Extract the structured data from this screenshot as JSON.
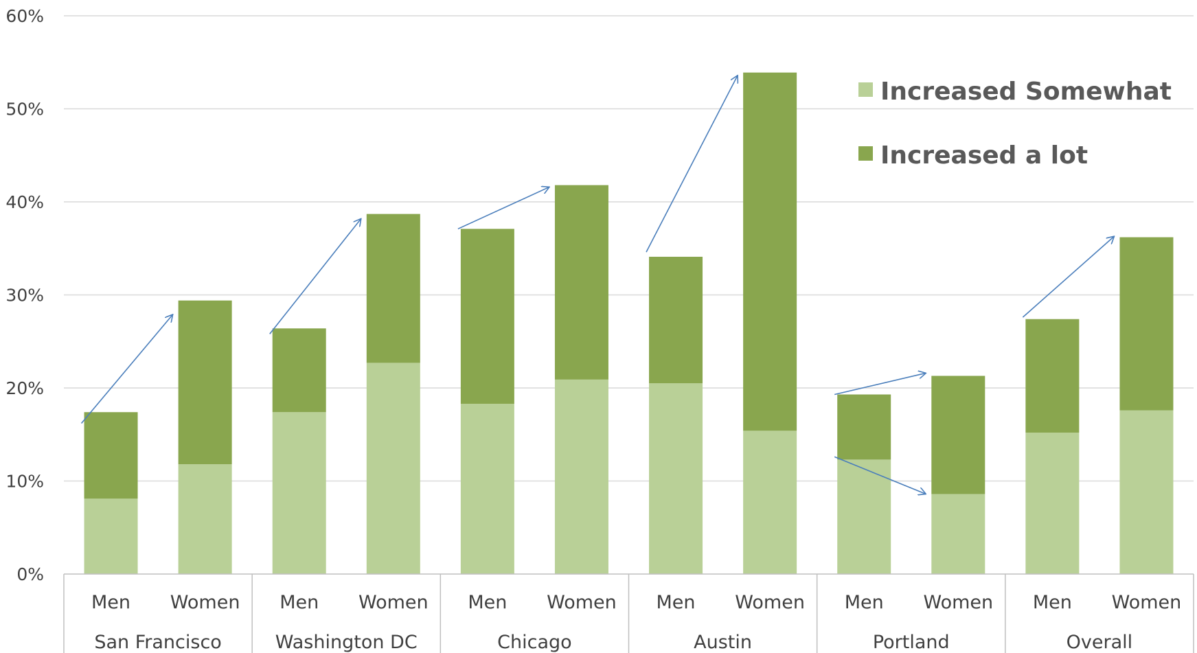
{
  "colors": {
    "somewhat": "#b9d097",
    "alot": "#89a64e",
    "arrow": "#4a7ebb",
    "grid": "#d9d9d9",
    "axis": "#bfbfbf",
    "text": "#404040"
  },
  "chart_data": {
    "type": "bar",
    "stacked": true,
    "ylim": [
      0,
      60
    ],
    "yticks": [
      0,
      10,
      20,
      30,
      40,
      50,
      60
    ],
    "ytick_labels": [
      "0%",
      "10%",
      "20%",
      "30%",
      "40%",
      "50%",
      "60%"
    ],
    "grid": true,
    "legend_position": "top-right",
    "groups": [
      {
        "name": "San Francisco",
        "bars": [
          {
            "label": "Men",
            "increased_somewhat": 8.1,
            "increased_a_lot": 9.3
          },
          {
            "label": "Women",
            "increased_somewhat": 11.8,
            "increased_a_lot": 17.6
          }
        ]
      },
      {
        "name": "Washington DC",
        "bars": [
          {
            "label": "Men",
            "increased_somewhat": 17.4,
            "increased_a_lot": 9.0
          },
          {
            "label": "Women",
            "increased_somewhat": 22.7,
            "increased_a_lot": 16.0
          }
        ]
      },
      {
        "name": "Chicago",
        "bars": [
          {
            "label": "Men",
            "increased_somewhat": 18.3,
            "increased_a_lot": 18.8
          },
          {
            "label": "Women",
            "increased_somewhat": 20.9,
            "increased_a_lot": 20.9
          }
        ]
      },
      {
        "name": "Austin",
        "bars": [
          {
            "label": "Men",
            "increased_somewhat": 20.5,
            "increased_a_lot": 13.6
          },
          {
            "label": "Women",
            "increased_somewhat": 15.4,
            "increased_a_lot": 38.5
          }
        ]
      },
      {
        "name": "Portland",
        "bars": [
          {
            "label": "Men",
            "increased_somewhat": 12.3,
            "increased_a_lot": 7.0
          },
          {
            "label": "Women",
            "increased_somewhat": 8.6,
            "increased_a_lot": 12.7
          }
        ]
      },
      {
        "name": "Overall",
        "bars": [
          {
            "label": "Men",
            "increased_somewhat": 15.2,
            "increased_a_lot": 12.2
          },
          {
            "label": "Women",
            "increased_somewhat": 17.6,
            "increased_a_lot": 18.6
          }
        ]
      }
    ],
    "series": [
      {
        "key": "increased_somewhat",
        "name": "Increased Somewhat"
      },
      {
        "key": "increased_a_lot",
        "name": "Increased a lot"
      }
    ],
    "arrows": [
      {
        "group": 0,
        "from": [
          0,
          16.2
        ],
        "to": [
          1,
          27.9
        ]
      },
      {
        "group": 1,
        "from": [
          0,
          25.8
        ],
        "to": [
          1,
          38.2
        ]
      },
      {
        "group": 2,
        "from": [
          0,
          37.1
        ],
        "to": [
          1,
          41.6
        ]
      },
      {
        "group": 3,
        "from": [
          0,
          34.6
        ],
        "to": [
          1,
          53.6
        ]
      },
      {
        "group": 4,
        "from": [
          0,
          19.3
        ],
        "to": [
          1,
          21.6
        ]
      },
      {
        "group": 4,
        "from": [
          0,
          12.6
        ],
        "to": [
          1,
          8.6
        ]
      },
      {
        "group": 5,
        "from": [
          0,
          27.6
        ],
        "to": [
          1,
          36.3
        ]
      }
    ]
  }
}
